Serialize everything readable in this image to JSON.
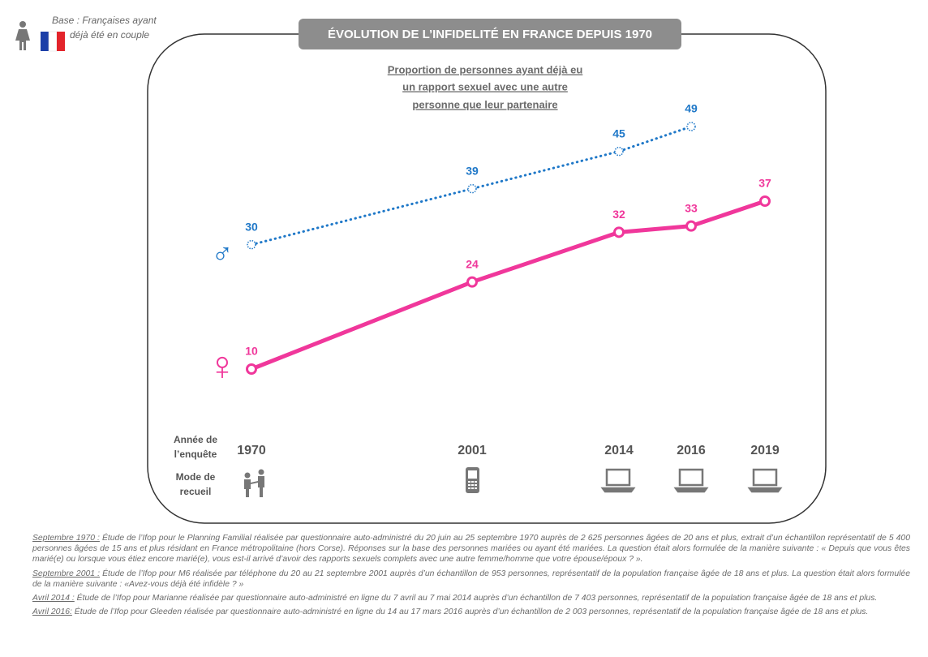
{
  "base_note": [
    "Base : Françaises ayant",
    "déjà été en couple"
  ],
  "chart_data": {
    "type": "line",
    "title": "ÉVOLUTION DE L’INFIDELITÉ EN FRANCE  DEPUIS 1970",
    "subtitle": [
      "Proportion de personnes ayant déjà eu",
      "un rapport sexuel avec une autre",
      "personne que leur partenaire"
    ],
    "categories": [
      "1970",
      "2001",
      "2014",
      "2016",
      "2019"
    ],
    "series": [
      {
        "name": "♂",
        "color": "#1f78c8",
        "style": "dotted",
        "values": [
          30,
          39,
          45,
          49,
          null
        ]
      },
      {
        "name": "♀",
        "color": "#f0379b",
        "style": "solid",
        "values": [
          10,
          24,
          32,
          33,
          37
        ]
      }
    ],
    "survey_year_label": [
      "Année de",
      "l’enquête"
    ],
    "collection_mode_label": [
      "Mode de",
      "recueil"
    ]
  },
  "notes": [
    {
      "date": "Septembre 1970 :",
      "text": " Étude de l’Ifop pour le Planning Familial réalisée par questionnaire auto-administré du 20 juin au 25 septembre 1970 auprès de 2 625 personnes âgées de 20 ans et plus, extrait d’un échantillon représentatif de 5 400 personnes âgées de 15 ans et plus résidant en France métropolitaine (hors Corse). Réponses sur la base des personnes mariées ou ayant été mariées. La question était alors formulée de la manière suivante : « Depuis que vous êtes marié(e) ou lorsque vous étiez encore marié(e), vous est-il arrivé d’avoir des rapports sexuels complets avec une autre femme/homme que votre épouse/époux ? »."
    },
    {
      "date": "Septembre 2001 :",
      "text": " Étude de l’Ifop pour M6 réalisée par téléphone du 20 au 21 septembre 2001 auprès d’un échantillon de 953 personnes, représentatif de la population française âgée de 18 ans et plus. La question était alors formulée de la manière suivante : «Avez-vous déjà été infidèle ? »"
    },
    {
      "date": "Avril 2014 :",
      "text": " Étude de l’Ifop pour Marianne réalisée par questionnaire auto-administré en ligne du 7 avril au 7 mai 2014 auprès d’un échantillon de 7 403 personnes, représentatif de la population française âgée de 18 ans et plus."
    },
    {
      "date": "Avril 2016:",
      "text": " Étude de l’Ifop pour Gleeden réalisée par questionnaire auto-administré en ligne du 14 au 17 mars 2016 auprès d’un échantillon de 2 003 personnes, représentatif de la population française âgée de 18  ans et plus."
    }
  ]
}
